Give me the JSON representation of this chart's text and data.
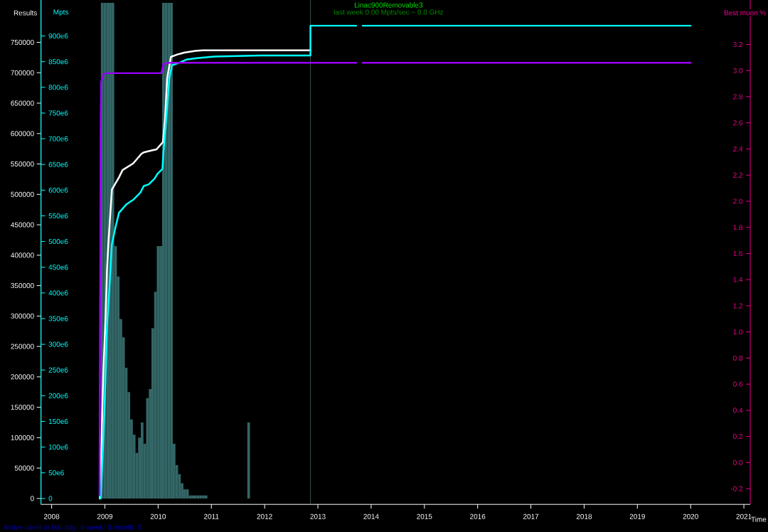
{
  "chart_data": {
    "type": "line",
    "title": "Linac900Removable3",
    "subtitle": "last week 0.00 Mpts/sec ~ 0.0 GHz",
    "xlabel": "Time",
    "ylabel": "Results",
    "y2label": "Mpts",
    "y3label": "Best muon %",
    "annotations": [
      "Active users in last day: 0 week: 0 month: 0"
    ],
    "xlim": [
      2007.8,
      2021.12
    ],
    "xticks": [
      2008,
      2009,
      2010,
      2011,
      2012,
      2013,
      2014,
      2015,
      2016,
      2017,
      2018,
      2019,
      2020,
      2021
    ],
    "ylim": [
      -9700,
      819600
    ],
    "yticks": [
      0,
      50000,
      100000,
      150000,
      200000,
      250000,
      300000,
      350000,
      400000,
      450000,
      500000,
      550000,
      600000,
      650000,
      700000,
      750000
    ],
    "y2lim": [
      -11500000,
      970000000
    ],
    "y2ticks": [
      0,
      {
        "value": 50000000,
        "label": "50e6"
      },
      {
        "value": 100000000,
        "label": "100e6"
      },
      {
        "value": 150000000,
        "label": "150e6"
      },
      {
        "value": 200000000,
        "label": "200e6"
      },
      {
        "value": 250000000,
        "label": "250e6"
      },
      {
        "value": 300000000,
        "label": "300e6"
      },
      {
        "value": 350000000,
        "label": "350e6"
      },
      {
        "value": 400000000,
        "label": "400e6"
      },
      {
        "value": 450000000,
        "label": "450e6"
      },
      {
        "value": 500000000,
        "label": "500e6"
      },
      {
        "value": 550000000,
        "label": "550e6"
      },
      {
        "value": 600000000,
        "label": "600e6"
      },
      {
        "value": 650000000,
        "label": "650e6"
      },
      {
        "value": 700000000,
        "label": "700e6"
      },
      {
        "value": 750000000,
        "label": "750e6"
      },
      {
        "value": 800000000,
        "label": "800e6"
      },
      {
        "value": 850000000,
        "label": "850e6"
      },
      {
        "value": 900000000,
        "label": "900e6"
      }
    ],
    "y3lim": [
      -0.32,
      3.54
    ],
    "y3ticks": [
      -0.2,
      {
        "value": 0,
        "label": "0.0"
      },
      0.2,
      0.4,
      0.6,
      0.8,
      {
        "value": 1,
        "label": "1.0"
      },
      1.2,
      1.4,
      1.6,
      1.8,
      {
        "value": 2,
        "label": "2.0"
      },
      2.2,
      2.4,
      2.6,
      2.8,
      {
        "value": 3,
        "label": "3.0"
      },
      3.2
    ],
    "series": [
      {
        "type": "histogram",
        "color": "#336666",
        "bins": [
          2008.925,
          2008.975,
          2009.025,
          2009.075,
          2009.125,
          2009.175,
          2009.225,
          2009.275,
          2009.325,
          2009.375,
          2009.425,
          2009.475,
          2009.525,
          2009.575,
          2009.625,
          2009.675,
          2009.725,
          2009.775,
          2009.825,
          2009.875,
          2009.925,
          2009.975,
          2010.025,
          2010.075,
          2010.125,
          2010.175,
          2010.225,
          2010.275,
          2010.325,
          2010.375,
          2010.425,
          2010.475,
          2010.525,
          2010.575,
          2010.625,
          2010.675,
          2010.725,
          2010.775,
          2010.825,
          2010.875,
          2010.925
        ],
        "values": [
          815000,
          815000,
          815000,
          815000,
          815000,
          415000,
          365000,
          295000,
          265000,
          215000,
          175000,
          130000,
          105000,
          75000,
          100000,
          125000,
          90000,
          165000,
          180000,
          280000,
          340000,
          415000,
          415000,
          815000,
          815000,
          815000,
          815000,
          90000,
          55000,
          40000,
          25000,
          15000,
          15000,
          5000,
          5000,
          5000,
          5000,
          5000,
          5000,
          5000
        ]
      },
      {
        "type": "histogram",
        "color": "#336666",
        "bins": [
          2011.675,
          2011.725
        ],
        "values": [
          125000
        ]
      },
      {
        "color": "#ffffff",
        "x": [
          2008.906,
          2008.972,
          2009.012,
          2009.04,
          2009.066,
          2009.132,
          2009.172,
          2009.265,
          2009.332,
          2009.532,
          2009.69,
          2009.73,
          2009.865,
          2009.97,
          2010.09,
          2010.13,
          2010.17,
          2010.24,
          2010.36,
          2010.49,
          2010.7,
          2010.84,
          2012.86
        ],
        "values": [
          0,
          210000,
          295000,
          376000,
          420000,
          508000,
          514000,
          528000,
          540000,
          551000,
          567000,
          569000,
          572000,
          574000,
          586000,
          625000,
          691000,
          726000,
          730000,
          733000,
          736000,
          737000,
          737000
        ]
      },
      {
        "axis": "y2",
        "color": "#00ffff",
        "x": [
          2008.92,
          2008.96,
          2009.0,
          2009.04,
          2009.09,
          2009.13,
          2009.2,
          2009.265,
          2009.4,
          2009.53,
          2009.665,
          2009.73,
          2009.82,
          2009.93,
          2009.99,
          2010.08,
          2010.1,
          2010.16,
          2010.21,
          2010.26,
          2010.4,
          2010.53,
          2010.73,
          2011.06,
          2011.93,
          2012.86,
          2012.86,
          2013.72,
          2013.78,
          2013.84,
          2020.0
        ],
        "values": [
          0,
          87000000,
          197000000,
          335000000,
          418000000,
          494000000,
          528000000,
          556000000,
          572000000,
          581000000,
          595000000,
          608000000,
          611000000,
          622000000,
          632000000,
          641000000,
          673000000,
          749000000,
          818000000,
          843000000,
          848000000,
          854000000,
          857000000,
          860000000,
          862000000,
          862000000,
          920000000,
          920000000,
          null,
          920000000,
          920000000
        ]
      },
      {
        "axis": "y3",
        "color": "#9900ff",
        "x": [
          2008.9,
          2008.905,
          2008.91,
          2008.915,
          2008.92,
          2008.93,
          2008.97,
          2009.03,
          2010.06,
          2010.08,
          2010.1,
          2010.2,
          2013.72,
          2013.78,
          2013.84,
          2020.0
        ],
        "values": [
          -0.25,
          0.5,
          1.2,
          1.6,
          2.5,
          2.91,
          2.97,
          2.98,
          2.98,
          3.01,
          3.05,
          3.06,
          3.06,
          null,
          3.06,
          3.06
        ]
      }
    ],
    "ref_lines": [
      {
        "axis": "x",
        "value": 2012.86,
        "color": "#3d6b6b"
      }
    ]
  }
}
